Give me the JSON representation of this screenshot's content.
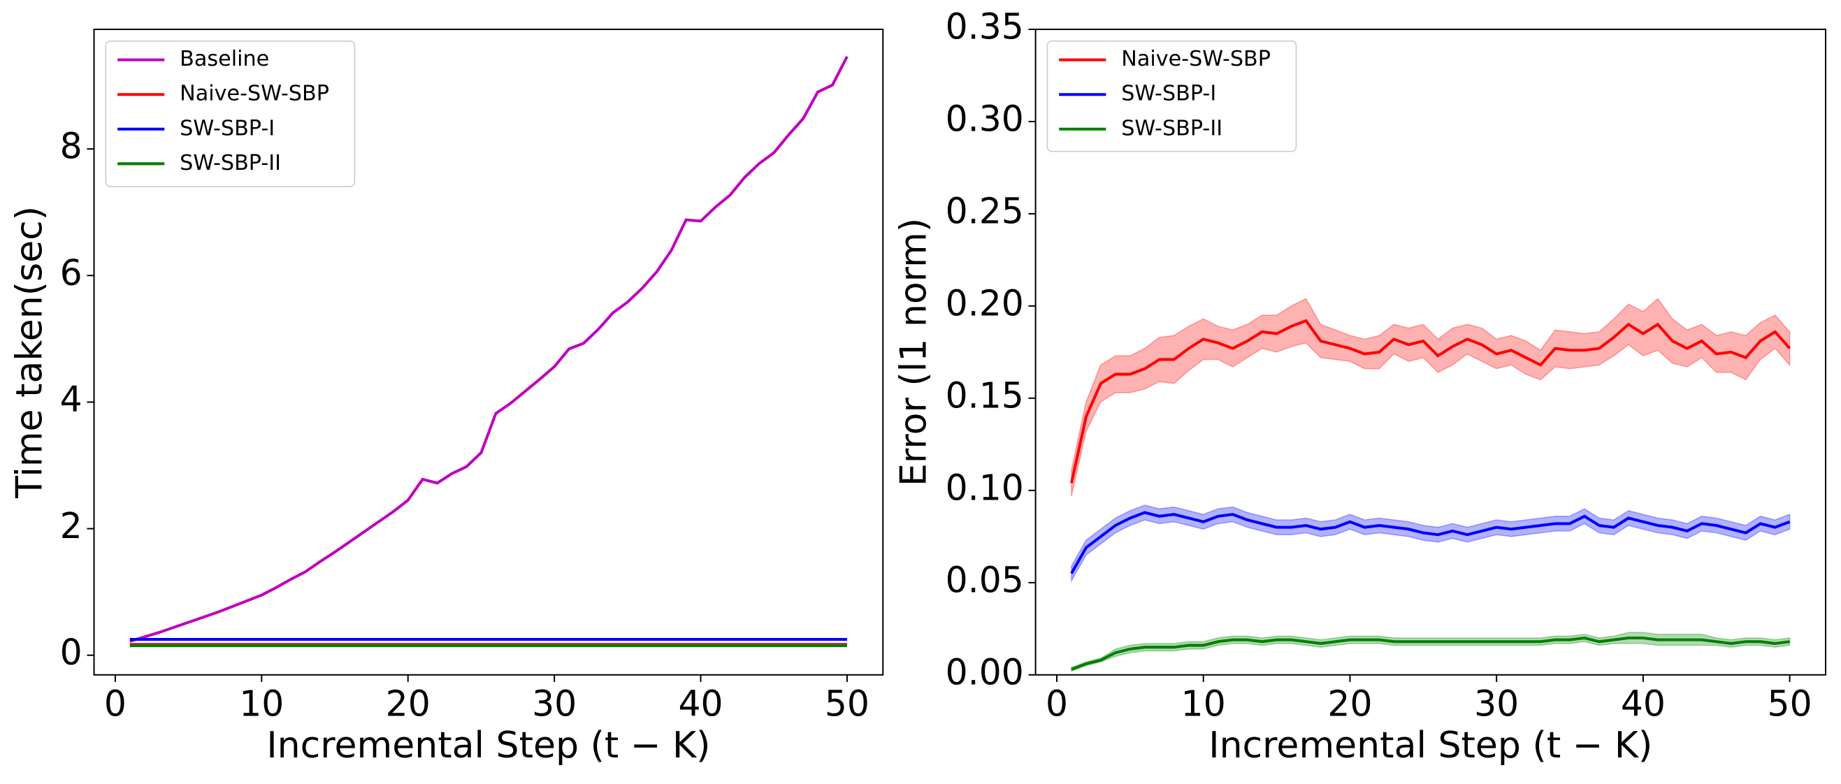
{
  "chart_data": [
    {
      "type": "line",
      "xlabel": "Incremental Step (t − K)",
      "ylabel": "Time taken(sec)",
      "x": [
        1,
        2,
        3,
        4,
        5,
        6,
        7,
        8,
        9,
        10,
        11,
        12,
        13,
        14,
        15,
        16,
        17,
        18,
        19,
        20,
        21,
        22,
        23,
        24,
        25,
        26,
        27,
        28,
        29,
        30,
        31,
        32,
        33,
        34,
        35,
        36,
        37,
        38,
        39,
        40,
        41,
        42,
        43,
        44,
        45,
        46,
        47,
        48,
        49,
        50
      ],
      "series": [
        {
          "name": "Baseline",
          "color": "#bf00bf",
          "values": [
            0.22,
            0.29,
            0.36,
            0.44,
            0.52,
            0.6,
            0.68,
            0.77,
            0.86,
            0.95,
            1.07,
            1.2,
            1.32,
            1.48,
            1.63,
            1.79,
            1.95,
            2.11,
            2.27,
            2.45,
            2.78,
            2.72,
            2.87,
            2.98,
            3.2,
            3.82,
            3.98,
            4.17,
            4.36,
            4.56,
            4.84,
            4.93,
            5.15,
            5.41,
            5.58,
            5.8,
            6.06,
            6.4,
            6.88,
            6.86,
            7.08,
            7.27,
            7.55,
            7.77,
            7.94,
            8.22,
            8.48,
            8.9,
            9.01,
            9.46
          ]
        },
        {
          "name": "Naive-SW-SBP",
          "color": "#ff0000",
          "values": [
            0.17,
            0.17,
            0.17,
            0.17,
            0.17,
            0.17,
            0.17,
            0.17,
            0.17,
            0.17,
            0.17,
            0.17,
            0.17,
            0.17,
            0.17,
            0.17,
            0.17,
            0.17,
            0.17,
            0.17,
            0.17,
            0.17,
            0.17,
            0.17,
            0.17,
            0.17,
            0.17,
            0.17,
            0.17,
            0.17,
            0.17,
            0.17,
            0.17,
            0.17,
            0.17,
            0.17,
            0.17,
            0.17,
            0.17,
            0.17,
            0.17,
            0.17,
            0.17,
            0.17,
            0.17,
            0.17,
            0.17,
            0.17,
            0.17,
            0.17
          ]
        },
        {
          "name": "SW-SBP-I",
          "color": "#0000ff",
          "values": [
            0.25,
            0.25,
            0.25,
            0.25,
            0.25,
            0.25,
            0.25,
            0.25,
            0.25,
            0.25,
            0.25,
            0.25,
            0.25,
            0.25,
            0.25,
            0.25,
            0.25,
            0.25,
            0.25,
            0.25,
            0.25,
            0.25,
            0.25,
            0.25,
            0.25,
            0.25,
            0.25,
            0.25,
            0.25,
            0.25,
            0.25,
            0.25,
            0.25,
            0.25,
            0.25,
            0.25,
            0.25,
            0.25,
            0.25,
            0.25,
            0.25,
            0.25,
            0.25,
            0.25,
            0.25,
            0.25,
            0.25,
            0.25,
            0.25,
            0.25
          ]
        },
        {
          "name": "SW-SBP-II",
          "color": "#008000",
          "values": [
            0.15,
            0.15,
            0.15,
            0.15,
            0.15,
            0.15,
            0.15,
            0.15,
            0.15,
            0.15,
            0.15,
            0.15,
            0.15,
            0.15,
            0.15,
            0.15,
            0.15,
            0.15,
            0.15,
            0.15,
            0.15,
            0.15,
            0.15,
            0.15,
            0.15,
            0.15,
            0.15,
            0.15,
            0.15,
            0.15,
            0.15,
            0.15,
            0.15,
            0.15,
            0.15,
            0.15,
            0.15,
            0.15,
            0.15,
            0.15,
            0.15,
            0.15,
            0.15,
            0.15,
            0.15,
            0.15,
            0.15,
            0.15,
            0.15,
            0.15
          ]
        }
      ],
      "xlim": [
        -1.45,
        52.45
      ],
      "xticks": [
        0,
        10,
        20,
        30,
        40,
        50
      ],
      "ylim": [
        -0.31,
        9.89
      ],
      "yticks": [
        0,
        2,
        4,
        6,
        8
      ],
      "legend": "upper left"
    },
    {
      "type": "line",
      "xlabel": "Incremental Step (t − K)",
      "ylabel": "Error (l1 norm)",
      "x": [
        1,
        2,
        3,
        4,
        5,
        6,
        7,
        8,
        9,
        10,
        11,
        12,
        13,
        14,
        15,
        16,
        17,
        18,
        19,
        20,
        21,
        22,
        23,
        24,
        25,
        26,
        27,
        28,
        29,
        30,
        31,
        32,
        33,
        34,
        35,
        36,
        37,
        38,
        39,
        40,
        41,
        42,
        43,
        44,
        45,
        46,
        47,
        48,
        49,
        50
      ],
      "series": [
        {
          "name": "Naive-SW-SBP",
          "color": "#ff0000",
          "values": [
            0.104,
            0.14,
            0.158,
            0.163,
            0.163,
            0.166,
            0.171,
            0.171,
            0.177,
            0.182,
            0.18,
            0.177,
            0.181,
            0.186,
            0.185,
            0.189,
            0.192,
            0.181,
            0.179,
            0.177,
            0.174,
            0.175,
            0.182,
            0.179,
            0.181,
            0.173,
            0.178,
            0.182,
            0.179,
            0.174,
            0.176,
            0.172,
            0.168,
            0.177,
            0.176,
            0.176,
            0.177,
            0.183,
            0.19,
            0.185,
            0.19,
            0.181,
            0.177,
            0.181,
            0.174,
            0.175,
            0.172,
            0.181,
            0.186,
            0.177
          ],
          "errors": [
            0.007,
            0.008,
            0.01,
            0.01,
            0.01,
            0.011,
            0.012,
            0.013,
            0.012,
            0.011,
            0.009,
            0.01,
            0.009,
            0.009,
            0.01,
            0.011,
            0.012,
            0.009,
            0.008,
            0.007,
            0.008,
            0.009,
            0.008,
            0.009,
            0.009,
            0.009,
            0.01,
            0.008,
            0.009,
            0.008,
            0.008,
            0.009,
            0.008,
            0.01,
            0.01,
            0.009,
            0.009,
            0.01,
            0.011,
            0.012,
            0.014,
            0.012,
            0.01,
            0.009,
            0.01,
            0.011,
            0.012,
            0.01,
            0.009,
            0.009
          ]
        },
        {
          "name": "SW-SBP-I",
          "color": "#0000ff",
          "values": [
            0.055,
            0.069,
            0.075,
            0.081,
            0.085,
            0.088,
            0.086,
            0.087,
            0.085,
            0.083,
            0.086,
            0.087,
            0.084,
            0.082,
            0.08,
            0.08,
            0.081,
            0.079,
            0.08,
            0.083,
            0.08,
            0.081,
            0.08,
            0.079,
            0.077,
            0.076,
            0.078,
            0.076,
            0.078,
            0.08,
            0.079,
            0.08,
            0.081,
            0.082,
            0.082,
            0.086,
            0.081,
            0.08,
            0.085,
            0.083,
            0.081,
            0.08,
            0.078,
            0.082,
            0.081,
            0.079,
            0.077,
            0.082,
            0.08,
            0.083
          ],
          "errors": [
            0.004,
            0.004,
            0.004,
            0.004,
            0.004,
            0.004,
            0.004,
            0.004,
            0.004,
            0.004,
            0.004,
            0.004,
            0.004,
            0.004,
            0.004,
            0.004,
            0.004,
            0.004,
            0.004,
            0.004,
            0.004,
            0.004,
            0.004,
            0.004,
            0.004,
            0.004,
            0.004,
            0.004,
            0.004,
            0.004,
            0.004,
            0.004,
            0.004,
            0.004,
            0.004,
            0.004,
            0.004,
            0.004,
            0.004,
            0.004,
            0.004,
            0.004,
            0.004,
            0.004,
            0.004,
            0.004,
            0.004,
            0.004,
            0.004,
            0.004
          ]
        },
        {
          "name": "SW-SBP-II",
          "color": "#008000",
          "values": [
            0.003,
            0.006,
            0.008,
            0.012,
            0.014,
            0.015,
            0.015,
            0.015,
            0.016,
            0.016,
            0.018,
            0.019,
            0.019,
            0.018,
            0.019,
            0.019,
            0.018,
            0.017,
            0.018,
            0.019,
            0.019,
            0.019,
            0.018,
            0.018,
            0.018,
            0.018,
            0.018,
            0.018,
            0.018,
            0.018,
            0.018,
            0.018,
            0.018,
            0.019,
            0.019,
            0.02,
            0.018,
            0.019,
            0.02,
            0.02,
            0.019,
            0.019,
            0.019,
            0.019,
            0.018,
            0.017,
            0.018,
            0.018,
            0.017,
            0.018
          ],
          "errors": [
            0.001,
            0.001,
            0.001,
            0.002,
            0.002,
            0.002,
            0.002,
            0.002,
            0.002,
            0.002,
            0.002,
            0.002,
            0.002,
            0.002,
            0.002,
            0.002,
            0.002,
            0.002,
            0.002,
            0.002,
            0.002,
            0.002,
            0.002,
            0.002,
            0.002,
            0.002,
            0.002,
            0.002,
            0.002,
            0.002,
            0.002,
            0.002,
            0.002,
            0.002,
            0.002,
            0.002,
            0.002,
            0.002,
            0.003,
            0.003,
            0.003,
            0.003,
            0.003,
            0.003,
            0.002,
            0.002,
            0.002,
            0.002,
            0.002,
            0.002
          ]
        }
      ],
      "xlim": [
        -1.45,
        52.45
      ],
      "xticks": [
        0,
        10,
        20,
        30,
        40,
        50
      ],
      "ylim": [
        0,
        0.35
      ],
      "yticks": [
        {
          "value": 0,
          "label": "0.00"
        },
        {
          "value": 0.05,
          "label": "0.05"
        },
        {
          "value": 0.1,
          "label": "0.10"
        },
        {
          "value": 0.15,
          "label": "0.15"
        },
        {
          "value": 0.2,
          "label": "0.20"
        },
        {
          "value": 0.25,
          "label": "0.25"
        },
        {
          "value": 0.3,
          "label": "0.30"
        },
        {
          "value": 0.35,
          "label": "0.35"
        }
      ],
      "legend": "upper left"
    }
  ]
}
